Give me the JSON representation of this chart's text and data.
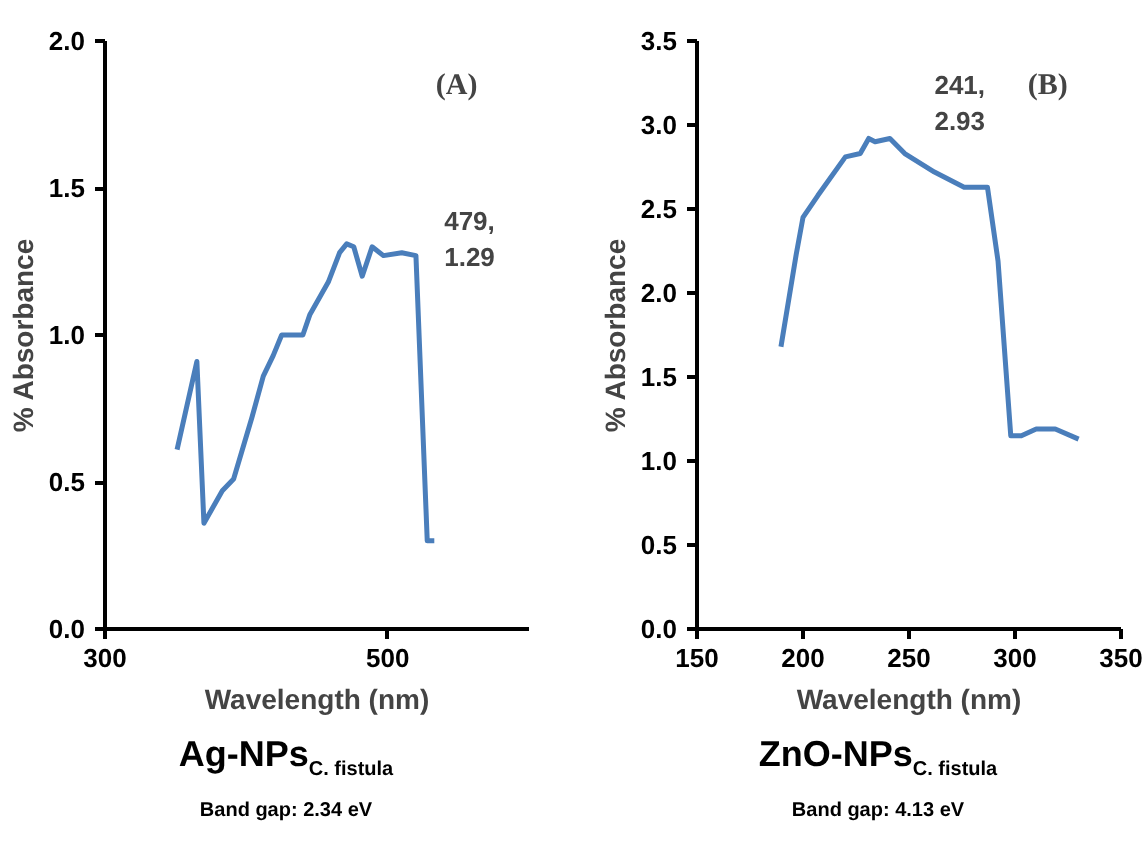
{
  "chart_data": [
    {
      "type": "line",
      "title": "Ag-NPs$_{C. fistula}$",
      "subtitle": "Band gap: 2.34 eV",
      "xlabel": "Wavelength (nm)",
      "ylabel": "% Absorbance",
      "annotations": [
        "(A)",
        "479,\n1.29"
      ],
      "xlim": [
        300,
        600
      ],
      "xticks": [
        300,
        500
      ],
      "ylim": [
        0,
        2
      ],
      "yticks": [
        {
          "value": 0,
          "label": "0.0"
        },
        0.5,
        {
          "value": 1,
          "label": "1.0"
        },
        1.5,
        {
          "value": 2,
          "label": "2.0"
        }
      ],
      "grid": false,
      "marker": "none",
      "series": [
        {
          "color": "#4a7ebb",
          "x": [
            351,
            365,
            370,
            383,
            391,
            404,
            412,
            419,
            425,
            440,
            445,
            458,
            466,
            471,
            476,
            482,
            489,
            497,
            510,
            520,
            528,
            533
          ],
          "values": [
            0.61,
            0.91,
            0.36,
            0.47,
            0.51,
            0.72,
            0.86,
            0.93,
            1.0,
            1.0,
            1.07,
            1.18,
            1.28,
            1.31,
            1.3,
            1.2,
            1.3,
            1.27,
            1.28,
            1.27,
            0.3,
            0.3
          ]
        }
      ]
    },
    {
      "type": "line",
      "title": "ZnO-NPs$_{C. fistula}$",
      "subtitle": "Band gap: 4.13 eV",
      "xlabel": "Wavelength (nm)",
      "ylabel": "% Absorbance",
      "annotations": [
        "(B)",
        "241,\n2.93"
      ],
      "xlim": [
        150,
        350
      ],
      "xticks": [
        150,
        200,
        250,
        300,
        350
      ],
      "ylim": [
        0,
        3.5
      ],
      "yticks": [
        {
          "value": 0,
          "label": "0.0"
        },
        0.5,
        {
          "value": 1,
          "label": "1.0"
        },
        1.5,
        {
          "value": 2,
          "label": "2.0"
        },
        2.5,
        {
          "value": 3,
          "label": "3.0"
        },
        3.5
      ],
      "grid": false,
      "marker": "none",
      "series": [
        {
          "color": "#4a7ebb",
          "x": [
            189.6,
            196.8,
            200,
            207,
            220,
            227,
            231,
            234,
            241,
            248,
            262,
            276,
            287,
            292,
            298,
            303,
            310,
            319,
            330
          ],
          "values": [
            1.68,
            2.23,
            2.45,
            2.58,
            2.81,
            2.83,
            2.92,
            2.9,
            2.92,
            2.83,
            2.72,
            2.63,
            2.63,
            2.19,
            1.15,
            1.15,
            1.19,
            1.19,
            1.13
          ]
        }
      ]
    }
  ]
}
